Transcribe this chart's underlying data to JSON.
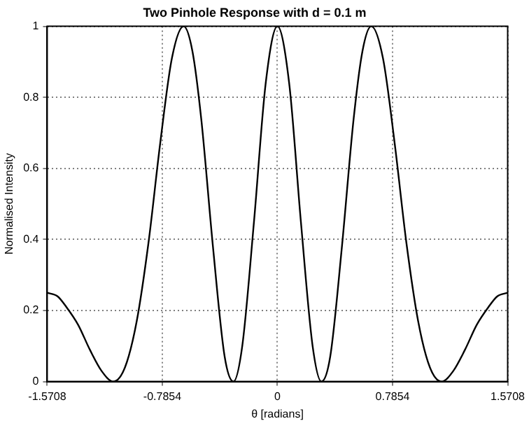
{
  "chart_data": {
    "type": "line",
    "title": "Two Pinhole Response with d = 0.1 m",
    "xlabel": "θ [radians]",
    "ylabel": "Normalised Intensity",
    "x": [
      -1.5708,
      -1.5,
      -1.44,
      -1.36,
      -1.28,
      -1.2,
      -1.12,
      -1.04,
      -0.96,
      -0.88,
      -0.8,
      -0.72,
      -0.64,
      -0.58,
      -0.52,
      -0.44,
      -0.36,
      -0.3,
      -0.24,
      -0.16,
      -0.08,
      0,
      0.08,
      0.16,
      0.24,
      0.3,
      0.36,
      0.44,
      0.52,
      0.58,
      0.64,
      0.72,
      0.8,
      0.88,
      0.96,
      1.04,
      1.12,
      1.2,
      1.28,
      1.36,
      1.44,
      1.5,
      1.5708
    ],
    "series": [
      {
        "color": "#000000",
        "values": [
          0.25,
          0.24,
          0.21,
          0.16,
          0.09,
          0.03,
          0,
          0.04,
          0.17,
          0.39,
          0.67,
          0.91,
          1,
          0.93,
          0.74,
          0.38,
          0.07,
          0,
          0.1,
          0.45,
          0.84,
          1,
          0.84,
          0.45,
          0.1,
          0,
          0.07,
          0.38,
          0.74,
          0.93,
          1,
          0.91,
          0.67,
          0.39,
          0.17,
          0.04,
          0,
          0.03,
          0.09,
          0.16,
          0.21,
          0.24,
          0.25
        ]
      }
    ],
    "xlim": [
      -1.5708,
      1.5708
    ],
    "xticks": [
      -1.5708,
      -0.7854,
      0,
      0.7854,
      1.5708
    ],
    "ylim": [
      0,
      1
    ],
    "yticks": [
      0,
      0.2,
      0.4,
      0.6,
      0.8,
      1
    ],
    "grid": true,
    "line_style": "solid",
    "marker": "none",
    "legend": false
  }
}
